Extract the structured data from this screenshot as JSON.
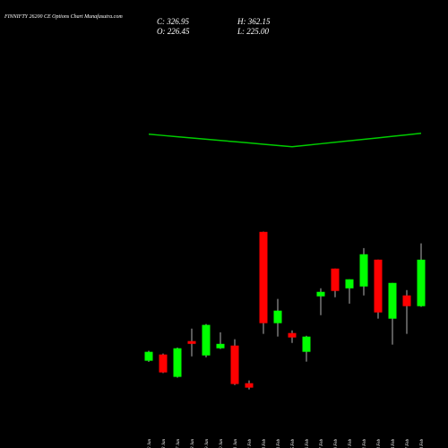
{
  "chart_data": {
    "type": "candlestick",
    "title": "FINNIFTY 26200 CE Options Chart Munafasutra.com",
    "ohlc_labels": [
      "C: 326.95",
      "H: 362.15",
      "O: 226.45",
      "L: 225.00"
    ],
    "categories": [
      "22 Jan",
      "23 Jan",
      "27 Jan",
      "28 Jan",
      "29 Jan",
      "30 Jan",
      "31 Jan",
      "01 Feb",
      "03 Feb",
      "04 Feb",
      "05 Feb",
      "06 Feb",
      "07 Feb",
      "10 Feb",
      "11 Feb",
      "12 Feb",
      "13 Feb",
      "14 Feb",
      "17 Feb",
      "18 Feb"
    ],
    "open": [
      108.5,
      122,
      73.7,
      151,
      120,
      135.5,
      141.3,
      60,
      387,
      189.7,
      168.4,
      127.8,
      247.7,
      307.7,
      265,
      269,
      327,
      199.4,
      249.7,
      226.45
    ],
    "close": [
      127.8,
      83.3,
      135.5,
      145,
      186,
      145,
      58.2,
      50.4,
      189.7,
      216.8,
      158.8,
      160.7,
      257.4,
      259.3,
      284.5,
      338.6,
      212.9,
      276.7,
      226.45,
      326.95
    ],
    "high": [
      130,
      124,
      137,
      178,
      188,
      170,
      155,
      66,
      387.5,
      242,
      174,
      162.6,
      265,
      307.7,
      284.5,
      352,
      327,
      276.7,
      261.3,
      362.15
    ],
    "low": [
      106,
      82,
      72,
      118,
      116,
      134,
      56,
      46.6,
      166.5,
      160.7,
      147,
      106.5,
      207,
      245.8,
      232,
      249.7,
      199.4,
      143.3,
      166.5,
      225
    ],
    "up_color": "#00ff00",
    "down_color": "#ff0000",
    "line": {
      "color": "#00cc00",
      "values": [
        598,
        595.3,
        592.6,
        589.9,
        587.2,
        584.5,
        581.8,
        579.1,
        576.4,
        573.7,
        571,
        574.2,
        577.4,
        580.6,
        583.8,
        587,
        590.2,
        593.4,
        596.6,
        600
      ]
    },
    "ylim": [
      -80,
      888
    ]
  }
}
